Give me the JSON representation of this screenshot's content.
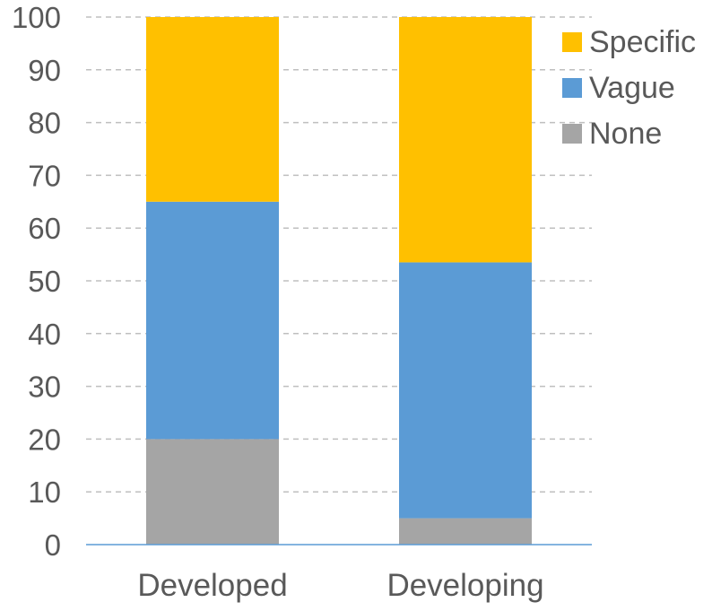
{
  "chart_data": {
    "type": "bar",
    "stacked": true,
    "categories": [
      "Developed",
      "Developing"
    ],
    "series": [
      {
        "name": "None",
        "values": [
          20,
          5
        ],
        "color": "#a5a5a5"
      },
      {
        "name": "Vague",
        "values": [
          45,
          48.5
        ],
        "color": "#5b9bd5"
      },
      {
        "name": "Specific",
        "values": [
          35,
          46.5
        ],
        "color": "#ffc000"
      }
    ],
    "legend_order": [
      "Specific",
      "Vague",
      "None"
    ],
    "legend_position": "top-right",
    "ylim": [
      0,
      100
    ],
    "yticks": [
      "0",
      "10",
      "20",
      "30",
      "40",
      "50",
      "60",
      "70",
      "80",
      "90",
      "100"
    ],
    "grid": true,
    "title": "",
    "xlabel": "",
    "ylabel": ""
  }
}
